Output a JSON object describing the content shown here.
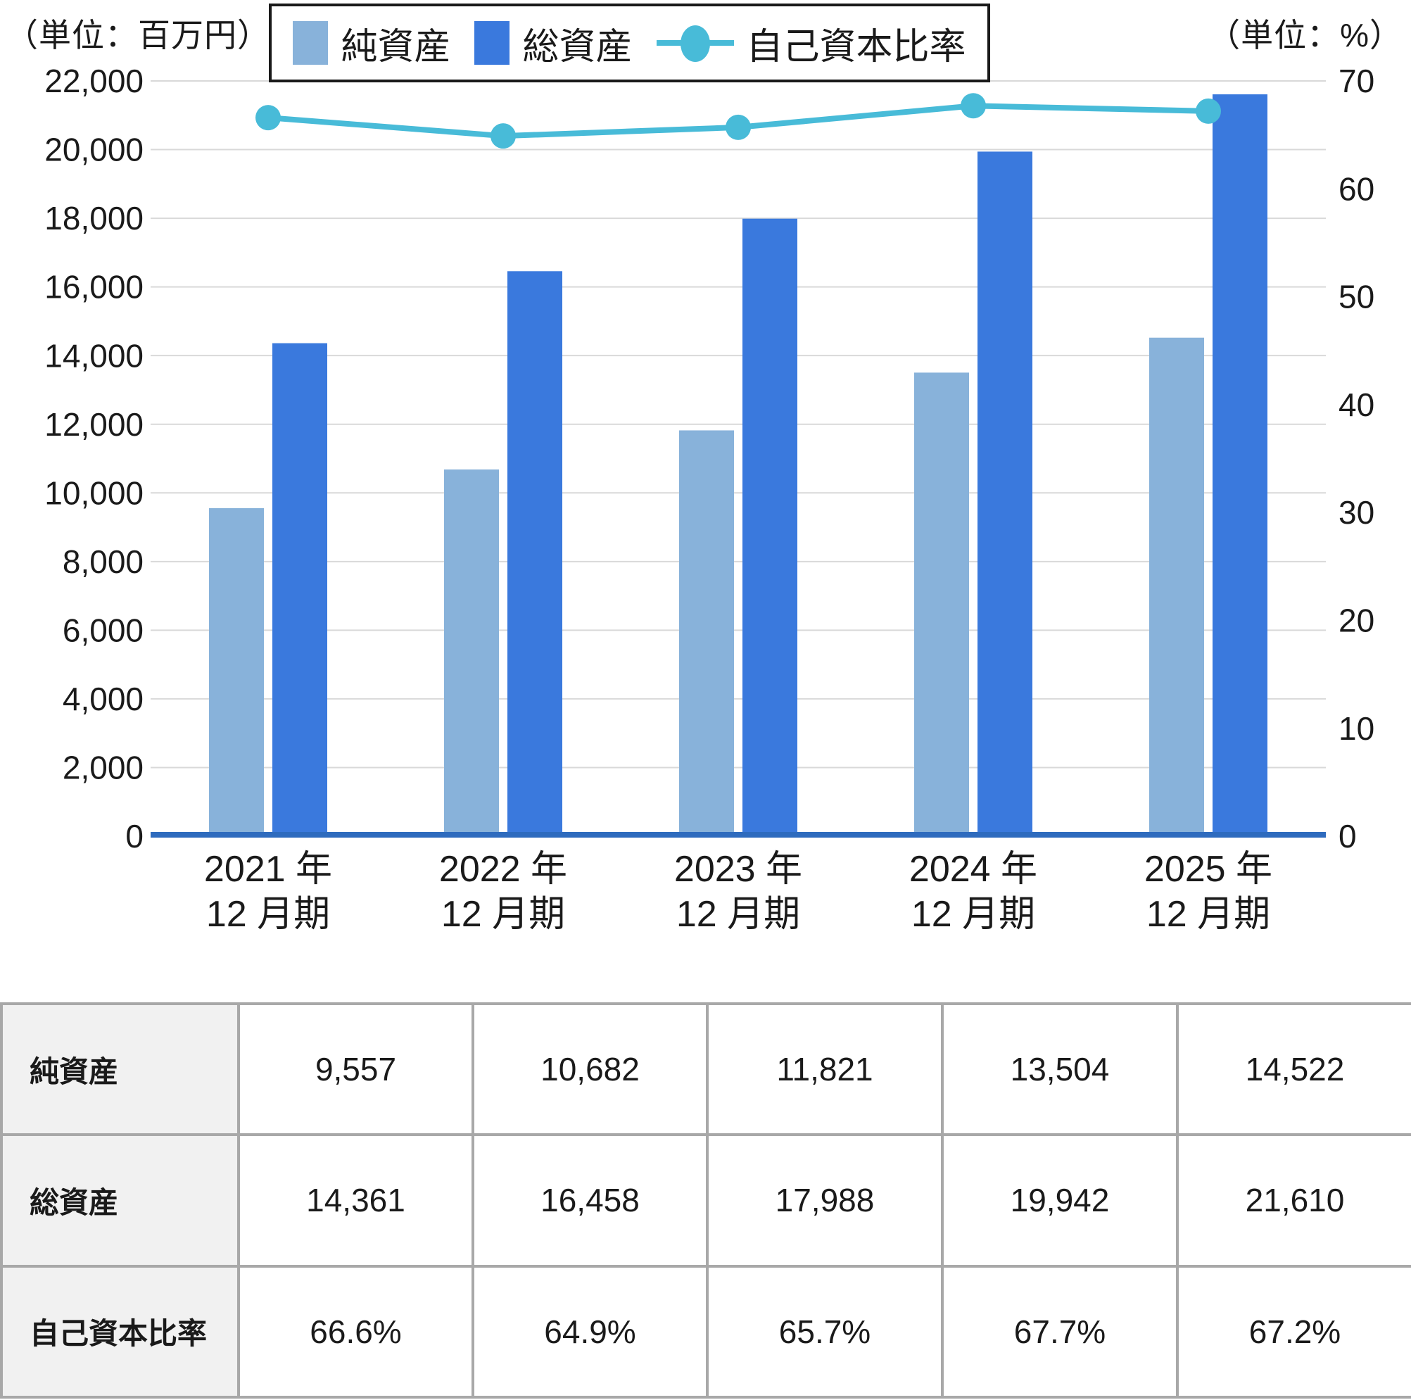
{
  "chart_data": {
    "type": "bar+line",
    "categories": [
      "2021 年 12 月期",
      "2022 年 12 月期",
      "2023 年 12 月期",
      "2024 年 12 月期",
      "2025 年 12 月期"
    ],
    "category_lines": [
      [
        "2021 年",
        "12 月期"
      ],
      [
        "2022 年",
        "12 月期"
      ],
      [
        "2023 年",
        "12 月期"
      ],
      [
        "2024 年",
        "12 月期"
      ],
      [
        "2025 年",
        "12 月期"
      ]
    ],
    "series": [
      {
        "name": "純資産",
        "key": "net-assets",
        "type": "bar",
        "axis": "left",
        "color": "#88B2DA",
        "values": [
          9557,
          10682,
          11821,
          13504,
          14522
        ]
      },
      {
        "name": "総資産",
        "key": "total-assets",
        "type": "bar",
        "axis": "left",
        "color": "#3A79DD",
        "values": [
          14361,
          16458,
          17988,
          19942,
          21610
        ]
      },
      {
        "name": "自己資本比率",
        "key": "equity-ratio",
        "type": "line",
        "axis": "right",
        "color": "#48BBD8",
        "values": [
          66.6,
          64.9,
          65.7,
          67.7,
          67.2
        ]
      }
    ],
    "left_axis": {
      "unit": "（単位：百万円）",
      "min": 0,
      "max": 22000,
      "tick_step": 2000,
      "tick_labels": [
        "0",
        "2,000",
        "4,000",
        "6,000",
        "8,000",
        "10,000",
        "12,000",
        "14,000",
        "16,000",
        "18,000",
        "20,000",
        "22,000"
      ]
    },
    "right_axis": {
      "unit": "（単位：%）",
      "min": 0,
      "max": 70,
      "tick_step": 10,
      "tick_labels": [
        "0",
        "10",
        "20",
        "30",
        "40",
        "50",
        "60",
        "70"
      ]
    },
    "grid": true,
    "legend_position": "top"
  },
  "table": {
    "rows": [
      {
        "label": "純資産",
        "values": [
          "9,557",
          "10,682",
          "11,821",
          "13,504",
          "14,522"
        ]
      },
      {
        "label": "総資産",
        "values": [
          "14,361",
          "16,458",
          "17,988",
          "19,942",
          "21,610"
        ]
      },
      {
        "label": "自己資本比率",
        "values": [
          "66.6%",
          "64.9%",
          "65.7%",
          "67.7%",
          "67.2%"
        ]
      }
    ]
  },
  "colors": {
    "bar_light": "#88B2DA",
    "bar_dark": "#3A79DD",
    "line_cyan": "#48BBD8",
    "axis_line": "#2E6BBE",
    "gridline": "#D9D9D9",
    "text": "#1A1A1A",
    "table_border": "#A8A8A8",
    "table_header_bg": "#F1F1F1"
  }
}
